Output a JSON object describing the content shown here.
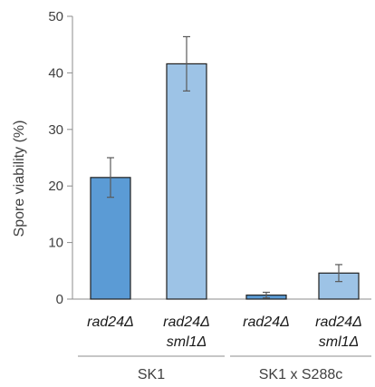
{
  "chart_data": {
    "type": "bar",
    "ylabel": "Spore viability (%)",
    "ylim": [
      0,
      50
    ],
    "yticks": [
      0,
      10,
      20,
      30,
      40,
      50
    ],
    "grid": false,
    "legend": "none",
    "categories": [
      {
        "line1": "rad24Δ",
        "line2": ""
      },
      {
        "line1": "rad24Δ",
        "line2": "sml1Δ"
      },
      {
        "line1": "rad24Δ",
        "line2": ""
      },
      {
        "line1": "rad24Δ",
        "line2": "sml1Δ"
      }
    ],
    "groups": [
      {
        "label": "SK1",
        "categories": [
          0,
          1
        ]
      },
      {
        "label": "SK1 x S288c",
        "categories": [
          2,
          3
        ]
      }
    ],
    "values": [
      21.5,
      41.6,
      0.7,
      4.6
    ],
    "errors": [
      3.5,
      4.8,
      0.5,
      1.5
    ],
    "bar_colors": [
      "#5b9bd5",
      "#9dc3e6",
      "#5b9bd5",
      "#9dc3e6"
    ],
    "bar_stroke": "#1f1f1f"
  }
}
